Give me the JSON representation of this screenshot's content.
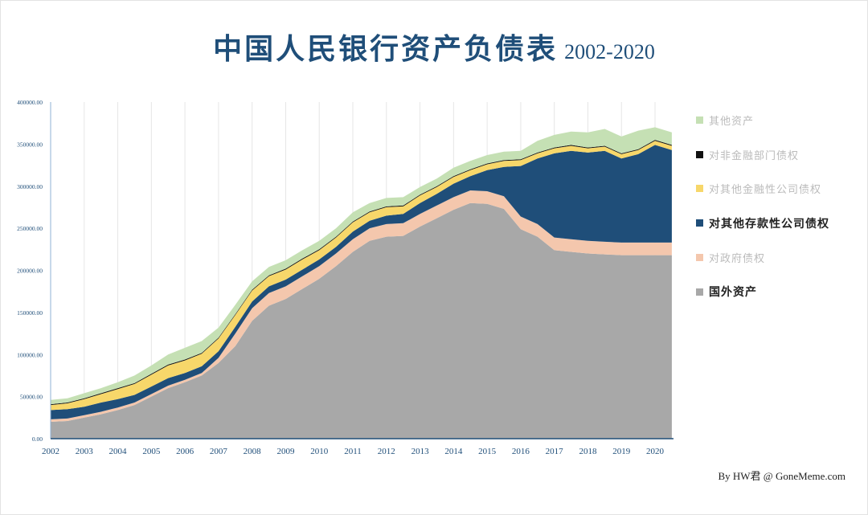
{
  "title": {
    "main": "中国人民银行资产负债表",
    "years": "2002-2020"
  },
  "credit": "By HW君 @ GoneMeme.com",
  "colors": {
    "title": "#1f4e79",
    "foreign_assets": "#a8a8a8",
    "claims_government": "#f4c7ad",
    "claims_odc": "#1f4e79",
    "claims_ofc": "#f7d76a",
    "claims_nonfinancial": "#111111",
    "other_assets": "#c5e0b4"
  },
  "legend": [
    {
      "label": "其他资产",
      "color": "#c5e0b4",
      "emphasis": false
    },
    {
      "label": "对非金融部门债权",
      "color": "#111111",
      "emphasis": false
    },
    {
      "label": "对其他金融性公司债权",
      "color": "#f7d76a",
      "emphasis": false
    },
    {
      "label": "对其他存款性公司债权",
      "color": "#1f4e79",
      "emphasis": true
    },
    {
      "label": "对政府债权",
      "color": "#f4c7ad",
      "emphasis": false
    },
    {
      "label": "国外资产",
      "color": "#a8a8a8",
      "emphasis": true
    }
  ],
  "chart_data": {
    "type": "area",
    "stacked": true,
    "title": "中国人民银行资产负债表 2002-2020",
    "xlabel": "",
    "ylabel": "",
    "xlim": [
      2002,
      2020.55
    ],
    "ylim": [
      0,
      400000
    ],
    "x_ticks": [
      "2002",
      "2003",
      "2004",
      "2005",
      "2006",
      "2007",
      "2008",
      "2009",
      "2010",
      "2011",
      "2012",
      "2013",
      "2014",
      "2015",
      "2016",
      "2017",
      "2018",
      "2019",
      "2020"
    ],
    "y_ticks": [
      "0.00",
      "50000.00",
      "100000.00",
      "150000.00",
      "200000.00",
      "250000.00",
      "300000.00",
      "350000.00",
      "400000.00"
    ],
    "grid": "vertical",
    "legend_position": "right",
    "x": [
      2002,
      2002.5,
      2003,
      2003.5,
      2004,
      2004.5,
      2005,
      2005.5,
      2006,
      2006.5,
      2007,
      2007.5,
      2008,
      2008.5,
      2009,
      2009.5,
      2010,
      2010.5,
      2011,
      2011.5,
      2012,
      2012.5,
      2013,
      2013.5,
      2014,
      2014.5,
      2015,
      2015.5,
      2016,
      2016.5,
      2017,
      2017.5,
      2018,
      2018.5,
      2019,
      2019.5,
      2020,
      2020.5
    ],
    "series": [
      {
        "name": "国外资产",
        "values": [
          20000,
          21000,
          25000,
          29000,
          34000,
          40000,
          50000,
          60000,
          67000,
          75000,
          90000,
          110000,
          140000,
          158000,
          166000,
          178000,
          190000,
          205000,
          222000,
          235000,
          240000,
          241000,
          252000,
          262000,
          272000,
          280000,
          279000,
          273000,
          249000,
          240000,
          224000,
          222000,
          220000,
          219000,
          218000,
          218000,
          218000,
          218000
        ]
      },
      {
        "name": "对政府债权",
        "values": [
          3000,
          3000,
          3000,
          3000,
          3000,
          3000,
          3000,
          3000,
          3000,
          3000,
          6000,
          15000,
          15000,
          15000,
          15000,
          15000,
          15000,
          15000,
          15000,
          15000,
          15000,
          15000,
          15000,
          15000,
          15000,
          15000,
          15000,
          15000,
          15000,
          15000,
          15000,
          15000,
          15000,
          15000,
          15000,
          15000,
          15000,
          15000
        ]
      },
      {
        "name": "对其他存款性公司债权",
        "values": [
          11000,
          11000,
          10000,
          11000,
          10000,
          9000,
          9000,
          9000,
          8000,
          8000,
          8000,
          8000,
          8000,
          8000,
          8000,
          8000,
          8000,
          8000,
          9000,
          9000,
          10000,
          11000,
          13000,
          14000,
          16000,
          17000,
          25000,
          35000,
          60000,
          78000,
          100000,
          105000,
          105000,
          108000,
          100000,
          105000,
          116000,
          110000
        ]
      },
      {
        "name": "对其他金融性公司债权",
        "values": [
          6000,
          7000,
          9000,
          10000,
          12000,
          13000,
          14000,
          15000,
          15000,
          15000,
          15000,
          14000,
          13000,
          12000,
          12000,
          12000,
          11000,
          11000,
          11000,
          10000,
          10000,
          9000,
          9000,
          8000,
          8000,
          7000,
          7000,
          7000,
          7000,
          6000,
          6000,
          6000,
          5000,
          5000,
          5000,
          5000,
          5000,
          5000
        ]
      },
      {
        "name": "对非金融部门债权",
        "values": [
          1000,
          1000,
          1000,
          1000,
          1000,
          1000,
          1000,
          1000,
          1000,
          1000,
          1000,
          1000,
          1000,
          1000,
          1000,
          1000,
          1000,
          1000,
          1000,
          1000,
          1000,
          1000,
          1000,
          1000,
          1000,
          1000,
          1000,
          1000,
          1000,
          1000,
          1000,
          1000,
          1000,
          1000,
          1000,
          1000,
          1000,
          1000
        ]
      },
      {
        "name": "其他资产",
        "values": [
          5000,
          5000,
          6000,
          6000,
          7000,
          9000,
          10000,
          12000,
          14000,
          14000,
          12000,
          11000,
          10000,
          10000,
          10000,
          10000,
          10000,
          10000,
          11000,
          10000,
          10000,
          10000,
          9000,
          9000,
          10000,
          10000,
          10000,
          10000,
          10000,
          14000,
          15000,
          16000,
          18000,
          20000,
          20000,
          22000,
          15000,
          15000
        ]
      }
    ]
  }
}
